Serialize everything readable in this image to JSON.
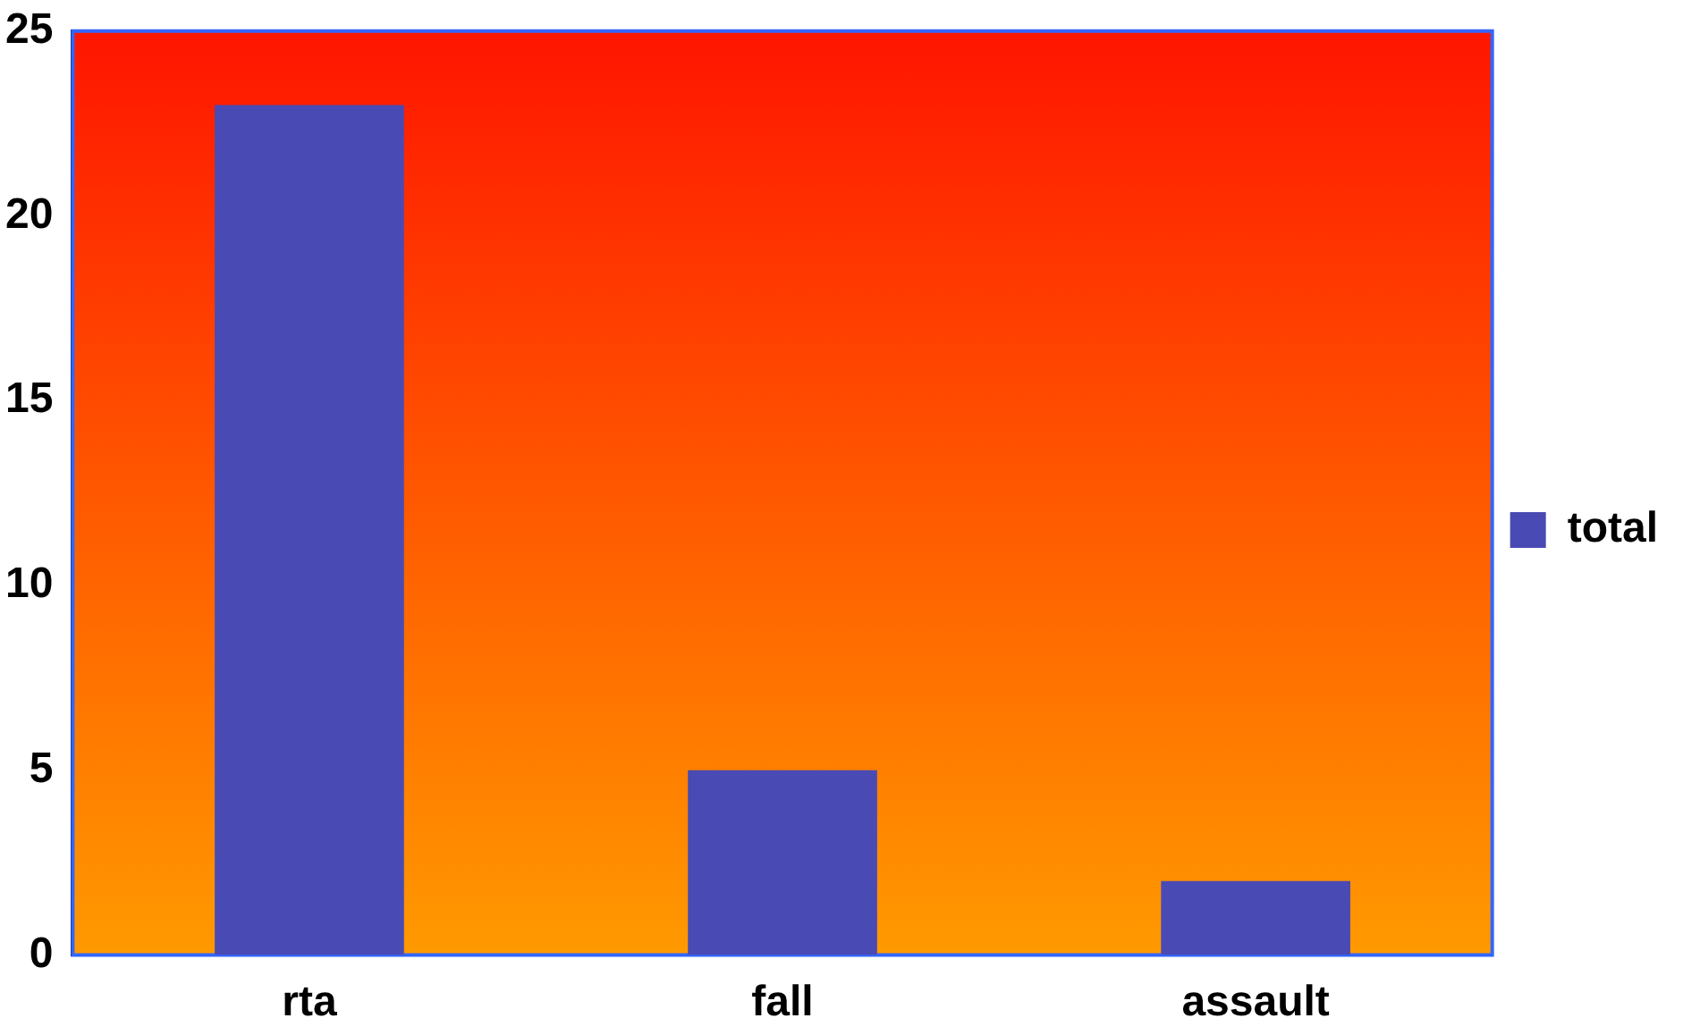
{
  "chart_data": {
    "type": "bar",
    "categories": [
      "rta",
      "fall",
      "assault"
    ],
    "series": [
      {
        "name": "total",
        "color": "#4a4ab4",
        "values": [
          23,
          5,
          2
        ]
      }
    ],
    "ylim": [
      0,
      25
    ],
    "yticks": [
      0,
      5,
      10,
      15,
      20,
      25
    ],
    "grid": false,
    "legend": "right"
  }
}
